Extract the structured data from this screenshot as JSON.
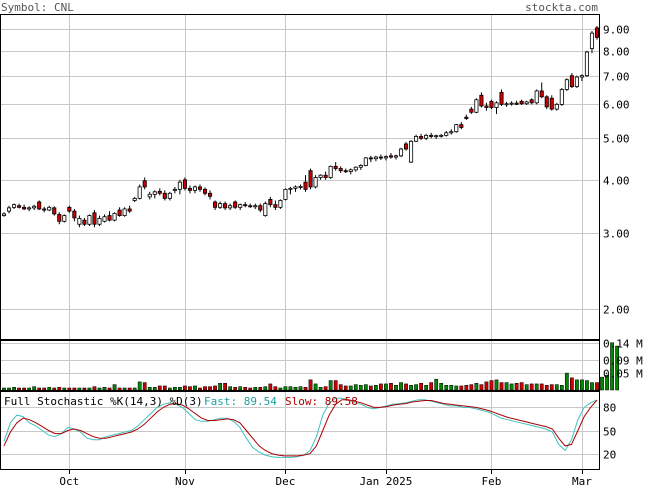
{
  "header": {
    "symbol_text": "Symbol: CNL",
    "brand": "stockta.com"
  },
  "colors": {
    "up_body": "#ffffff",
    "down_body": "#cc0000",
    "volume_up": "#008800",
    "volume_down": "#cc0000",
    "fast_line": "#40c0c0",
    "slow_line": "#aa0000",
    "fast_label": "#20a0a0",
    "slow_label": "#aa0000",
    "brand": "#555555",
    "grid": "#c8c8c8"
  },
  "chart_data": [
    {
      "type": "candlestick",
      "title": "",
      "y_scale": "log",
      "ylim": [
        1.7,
        9.7
      ],
      "y_ticks": [
        {
          "value": 9.0,
          "label": "9.00"
        },
        {
          "value": 8.0,
          "label": "8.00"
        },
        {
          "value": 7.0,
          "label": "7.00"
        },
        {
          "value": 6.0,
          "label": "6.00"
        },
        {
          "value": 5.0,
          "label": "5.00"
        },
        {
          "value": 4.0,
          "label": "4.00"
        },
        {
          "value": 3.0,
          "label": "3.00"
        },
        {
          "value": 2.0,
          "label": "2.00"
        }
      ],
      "x_ticks": [
        {
          "index": 13,
          "label": "Oct"
        },
        {
          "index": 36,
          "label": "Nov"
        },
        {
          "index": 56,
          "label": "Dec"
        },
        {
          "index": 76,
          "label": "Jan 2025"
        },
        {
          "index": 97,
          "label": "Feb"
        },
        {
          "index": 115,
          "label": "Mar"
        }
      ],
      "candles": [
        {
          "o": 3.3,
          "h": 3.36,
          "l": 3.28,
          "c": 3.33
        },
        {
          "o": 3.38,
          "h": 3.48,
          "l": 3.34,
          "c": 3.44
        },
        {
          "o": 3.45,
          "h": 3.52,
          "l": 3.42,
          "c": 3.5
        },
        {
          "o": 3.48,
          "h": 3.52,
          "l": 3.43,
          "c": 3.45
        },
        {
          "o": 3.45,
          "h": 3.5,
          "l": 3.4,
          "c": 3.42
        },
        {
          "o": 3.42,
          "h": 3.47,
          "l": 3.38,
          "c": 3.44
        },
        {
          "o": 3.44,
          "h": 3.5,
          "l": 3.4,
          "c": 3.47
        },
        {
          "o": 3.55,
          "h": 3.58,
          "l": 3.4,
          "c": 3.42
        },
        {
          "o": 3.42,
          "h": 3.46,
          "l": 3.36,
          "c": 3.4
        },
        {
          "o": 3.4,
          "h": 3.48,
          "l": 3.38,
          "c": 3.45
        },
        {
          "o": 3.44,
          "h": 3.47,
          "l": 3.3,
          "c": 3.33
        },
        {
          "o": 3.32,
          "h": 3.36,
          "l": 3.15,
          "c": 3.2
        },
        {
          "o": 3.2,
          "h": 3.32,
          "l": 3.18,
          "c": 3.3
        },
        {
          "o": 3.45,
          "h": 3.48,
          "l": 3.35,
          "c": 3.38
        },
        {
          "o": 3.38,
          "h": 3.42,
          "l": 3.2,
          "c": 3.26
        },
        {
          "o": 3.15,
          "h": 3.3,
          "l": 3.1,
          "c": 3.25
        },
        {
          "o": 3.22,
          "h": 3.26,
          "l": 3.12,
          "c": 3.15
        },
        {
          "o": 3.15,
          "h": 3.32,
          "l": 3.12,
          "c": 3.3
        },
        {
          "o": 3.35,
          "h": 3.4,
          "l": 3.1,
          "c": 3.15
        },
        {
          "o": 3.15,
          "h": 3.3,
          "l": 3.12,
          "c": 3.25
        },
        {
          "o": 3.2,
          "h": 3.32,
          "l": 3.18,
          "c": 3.28
        },
        {
          "o": 3.3,
          "h": 3.38,
          "l": 3.2,
          "c": 3.22
        },
        {
          "o": 3.22,
          "h": 3.36,
          "l": 3.2,
          "c": 3.34
        },
        {
          "o": 3.4,
          "h": 3.45,
          "l": 3.28,
          "c": 3.3
        },
        {
          "o": 3.3,
          "h": 3.45,
          "l": 3.28,
          "c": 3.42
        },
        {
          "o": 3.42,
          "h": 3.48,
          "l": 3.35,
          "c": 3.38
        },
        {
          "o": 3.58,
          "h": 3.65,
          "l": 3.55,
          "c": 3.62
        },
        {
          "o": 3.62,
          "h": 3.9,
          "l": 3.6,
          "c": 3.85
        },
        {
          "o": 3.98,
          "h": 4.05,
          "l": 3.8,
          "c": 3.85
        },
        {
          "o": 3.65,
          "h": 3.75,
          "l": 3.6,
          "c": 3.7
        },
        {
          "o": 3.7,
          "h": 3.78,
          "l": 3.62,
          "c": 3.75
        },
        {
          "o": 3.76,
          "h": 3.82,
          "l": 3.68,
          "c": 3.72
        },
        {
          "o": 3.72,
          "h": 3.78,
          "l": 3.58,
          "c": 3.62
        },
        {
          "o": 3.62,
          "h": 3.75,
          "l": 3.58,
          "c": 3.72
        },
        {
          "o": 3.78,
          "h": 3.85,
          "l": 3.72,
          "c": 3.8
        },
        {
          "o": 3.8,
          "h": 4.0,
          "l": 3.7,
          "c": 3.95
        },
        {
          "o": 4.0,
          "h": 4.05,
          "l": 3.78,
          "c": 3.82
        },
        {
          "o": 3.82,
          "h": 3.88,
          "l": 3.72,
          "c": 3.78
        },
        {
          "o": 3.78,
          "h": 3.88,
          "l": 3.72,
          "c": 3.85
        },
        {
          "o": 3.85,
          "h": 3.9,
          "l": 3.75,
          "c": 3.8
        },
        {
          "o": 3.8,
          "h": 3.84,
          "l": 3.68,
          "c": 3.72
        },
        {
          "o": 3.72,
          "h": 3.78,
          "l": 3.6,
          "c": 3.66
        },
        {
          "o": 3.55,
          "h": 3.58,
          "l": 3.4,
          "c": 3.45
        },
        {
          "o": 3.45,
          "h": 3.56,
          "l": 3.42,
          "c": 3.52
        },
        {
          "o": 3.52,
          "h": 3.56,
          "l": 3.4,
          "c": 3.44
        },
        {
          "o": 3.44,
          "h": 3.52,
          "l": 3.4,
          "c": 3.48
        },
        {
          "o": 3.55,
          "h": 3.58,
          "l": 3.42,
          "c": 3.45
        },
        {
          "o": 3.45,
          "h": 3.52,
          "l": 3.4,
          "c": 3.5
        },
        {
          "o": 3.5,
          "h": 3.55,
          "l": 3.45,
          "c": 3.48
        },
        {
          "o": 3.48,
          "h": 3.52,
          "l": 3.44,
          "c": 3.46
        },
        {
          "o": 3.46,
          "h": 3.52,
          "l": 3.42,
          "c": 3.48
        },
        {
          "o": 3.48,
          "h": 3.52,
          "l": 3.36,
          "c": 3.4
        },
        {
          "o": 3.3,
          "h": 3.56,
          "l": 3.28,
          "c": 3.52
        },
        {
          "o": 3.6,
          "h": 3.65,
          "l": 3.45,
          "c": 3.5
        },
        {
          "o": 3.5,
          "h": 3.58,
          "l": 3.4,
          "c": 3.45
        },
        {
          "o": 3.45,
          "h": 3.6,
          "l": 3.42,
          "c": 3.58
        },
        {
          "o": 3.6,
          "h": 3.82,
          "l": 3.58,
          "c": 3.8
        },
        {
          "o": 3.8,
          "h": 3.85,
          "l": 3.7,
          "c": 3.82
        },
        {
          "o": 3.82,
          "h": 3.88,
          "l": 3.75,
          "c": 3.85
        },
        {
          "o": 3.85,
          "h": 3.9,
          "l": 3.8,
          "c": 3.86
        },
        {
          "o": 3.95,
          "h": 4.1,
          "l": 3.75,
          "c": 3.8
        },
        {
          "o": 4.2,
          "h": 4.25,
          "l": 3.8,
          "c": 3.85
        },
        {
          "o": 3.85,
          "h": 4.1,
          "l": 3.82,
          "c": 4.05
        },
        {
          "o": 4.05,
          "h": 4.12,
          "l": 4.0,
          "c": 4.1
        },
        {
          "o": 4.1,
          "h": 4.18,
          "l": 4.0,
          "c": 4.05
        },
        {
          "o": 4.05,
          "h": 4.32,
          "l": 4.02,
          "c": 4.3
        },
        {
          "o": 4.3,
          "h": 4.4,
          "l": 4.2,
          "c": 4.25
        },
        {
          "o": 4.25,
          "h": 4.3,
          "l": 4.15,
          "c": 4.2
        },
        {
          "o": 4.2,
          "h": 4.25,
          "l": 4.15,
          "c": 4.18
        },
        {
          "o": 4.18,
          "h": 4.25,
          "l": 4.12,
          "c": 4.22
        },
        {
          "o": 4.22,
          "h": 4.3,
          "l": 4.18,
          "c": 4.28
        },
        {
          "o": 4.28,
          "h": 4.35,
          "l": 4.22,
          "c": 4.32
        },
        {
          "o": 4.32,
          "h": 4.52,
          "l": 4.3,
          "c": 4.5
        },
        {
          "o": 4.5,
          "h": 4.55,
          "l": 4.4,
          "c": 4.48
        },
        {
          "o": 4.48,
          "h": 4.55,
          "l": 4.42,
          "c": 4.52
        },
        {
          "o": 4.52,
          "h": 4.58,
          "l": 4.45,
          "c": 4.5
        },
        {
          "o": 4.5,
          "h": 4.56,
          "l": 4.44,
          "c": 4.53
        },
        {
          "o": 4.55,
          "h": 4.62,
          "l": 4.48,
          "c": 4.52
        },
        {
          "o": 4.52,
          "h": 4.58,
          "l": 4.46,
          "c": 4.55
        },
        {
          "o": 4.55,
          "h": 4.75,
          "l": 4.52,
          "c": 4.72
        },
        {
          "o": 4.85,
          "h": 4.9,
          "l": 4.68,
          "c": 4.72
        },
        {
          "o": 4.4,
          "h": 4.95,
          "l": 4.38,
          "c": 4.92
        },
        {
          "o": 4.92,
          "h": 5.1,
          "l": 4.9,
          "c": 5.05
        },
        {
          "o": 5.05,
          "h": 5.12,
          "l": 4.95,
          "c": 5.0
        },
        {
          "o": 5.0,
          "h": 5.12,
          "l": 4.95,
          "c": 5.08
        },
        {
          "o": 5.08,
          "h": 5.15,
          "l": 5.0,
          "c": 5.05
        },
        {
          "o": 5.05,
          "h": 5.1,
          "l": 4.98,
          "c": 5.07
        },
        {
          "o": 5.07,
          "h": 5.12,
          "l": 5.02,
          "c": 5.08
        },
        {
          "o": 5.08,
          "h": 5.2,
          "l": 5.05,
          "c": 5.15
        },
        {
          "o": 5.15,
          "h": 5.25,
          "l": 5.1,
          "c": 5.18
        },
        {
          "o": 5.18,
          "h": 5.4,
          "l": 5.15,
          "c": 5.38
        },
        {
          "o": 5.38,
          "h": 5.45,
          "l": 5.25,
          "c": 5.3
        },
        {
          "o": 5.6,
          "h": 5.68,
          "l": 5.52,
          "c": 5.56
        },
        {
          "o": 5.85,
          "h": 5.92,
          "l": 5.7,
          "c": 5.75
        },
        {
          "o": 5.75,
          "h": 6.2,
          "l": 5.72,
          "c": 6.15
        },
        {
          "o": 6.3,
          "h": 6.4,
          "l": 5.9,
          "c": 5.95
        },
        {
          "o": 5.95,
          "h": 6.05,
          "l": 5.8,
          "c": 5.9
        },
        {
          "o": 6.1,
          "h": 6.15,
          "l": 5.85,
          "c": 5.9
        },
        {
          "o": 5.9,
          "h": 6.1,
          "l": 5.7,
          "c": 6.05
        },
        {
          "o": 6.4,
          "h": 6.5,
          "l": 5.95,
          "c": 6.0
        },
        {
          "o": 6.0,
          "h": 6.08,
          "l": 5.92,
          "c": 6.02
        },
        {
          "o": 6.02,
          "h": 6.1,
          "l": 5.96,
          "c": 6.04
        },
        {
          "o": 6.04,
          "h": 6.12,
          "l": 5.98,
          "c": 6.0
        },
        {
          "o": 6.1,
          "h": 6.15,
          "l": 5.98,
          "c": 6.02
        },
        {
          "o": 6.02,
          "h": 6.12,
          "l": 5.98,
          "c": 6.08
        },
        {
          "o": 6.15,
          "h": 6.2,
          "l": 6.0,
          "c": 6.05
        },
        {
          "o": 6.05,
          "h": 6.5,
          "l": 6.0,
          "c": 6.45
        },
        {
          "o": 6.45,
          "h": 6.75,
          "l": 6.2,
          "c": 6.25
        },
        {
          "o": 6.25,
          "h": 6.3,
          "l": 5.85,
          "c": 5.92
        },
        {
          "o": 6.2,
          "h": 6.3,
          "l": 5.8,
          "c": 5.85
        },
        {
          "o": 5.85,
          "h": 6.05,
          "l": 5.8,
          "c": 6.0
        },
        {
          "o": 6.0,
          "h": 6.55,
          "l": 5.95,
          "c": 6.5
        },
        {
          "o": 6.5,
          "h": 6.9,
          "l": 6.45,
          "c": 6.85
        },
        {
          "o": 7.0,
          "h": 7.1,
          "l": 6.55,
          "c": 6.6
        },
        {
          "o": 6.6,
          "h": 7.0,
          "l": 6.55,
          "c": 6.95
        },
        {
          "o": 6.95,
          "h": 7.05,
          "l": 6.8,
          "c": 7.0
        },
        {
          "o": 7.0,
          "h": 8.0,
          "l": 6.95,
          "c": 7.95
        },
        {
          "o": 8.1,
          "h": 8.9,
          "l": 7.9,
          "c": 8.8
        },
        {
          "o": 9.05,
          "h": 9.15,
          "l": 8.5,
          "c": 8.6
        }
      ]
    },
    {
      "type": "bar",
      "title": "",
      "ylim": [
        0,
        0.145
      ],
      "y_ticks": [
        {
          "value": 0.14,
          "label": "0.14 M"
        },
        {
          "value": 0.09,
          "label": "0.09 M"
        },
        {
          "value": 0.05,
          "label": "0.05 M"
        }
      ],
      "unit": "M",
      "values": [
        0.006,
        0.006,
        0.008,
        0.006,
        0.006,
        0.006,
        0.01,
        0.006,
        0.006,
        0.008,
        0.006,
        0.008,
        0.006,
        0.006,
        0.006,
        0.006,
        0.006,
        0.006,
        0.01,
        0.006,
        0.008,
        0.006,
        0.016,
        0.006,
        0.006,
        0.006,
        0.006,
        0.024,
        0.022,
        0.008,
        0.008,
        0.012,
        0.012,
        0.006,
        0.008,
        0.008,
        0.012,
        0.01,
        0.012,
        0.006,
        0.01,
        0.01,
        0.012,
        0.02,
        0.02,
        0.01,
        0.008,
        0.01,
        0.008,
        0.006,
        0.008,
        0.008,
        0.01,
        0.018,
        0.01,
        0.006,
        0.01,
        0.01,
        0.008,
        0.01,
        0.008,
        0.03,
        0.018,
        0.008,
        0.01,
        0.028,
        0.028,
        0.016,
        0.012,
        0.012,
        0.016,
        0.014,
        0.016,
        0.012,
        0.014,
        0.018,
        0.018,
        0.02,
        0.014,
        0.022,
        0.018,
        0.014,
        0.016,
        0.02,
        0.014,
        0.022,
        0.032,
        0.02,
        0.014,
        0.014,
        0.012,
        0.012,
        0.014,
        0.016,
        0.02,
        0.016,
        0.024,
        0.028,
        0.03,
        0.022,
        0.022,
        0.018,
        0.02,
        0.022,
        0.016,
        0.018,
        0.018,
        0.018,
        0.014,
        0.016,
        0.016,
        0.014,
        0.05,
        0.036,
        0.03,
        0.03,
        0.028,
        0.022,
        0.022,
        0.038,
        0.044,
        0.14,
        0.13
      ]
    },
    {
      "type": "line",
      "title": "Full Stochastic %K(14,3) %D(3)",
      "ylim": [
        0,
        100
      ],
      "y_ticks": [
        {
          "value": 80,
          "label": "80"
        },
        {
          "value": 50,
          "label": "50"
        },
        {
          "value": 20,
          "label": "20"
        }
      ],
      "series": [
        {
          "name": "Fast",
          "last_value_label": "89.54",
          "values": [
            36,
            60,
            70,
            68,
            60,
            56,
            50,
            44,
            42,
            46,
            54,
            52,
            48,
            40,
            38,
            38,
            42,
            44,
            46,
            48,
            50,
            56,
            64,
            72,
            80,
            84,
            86,
            84,
            80,
            72,
            64,
            62,
            62,
            64,
            66,
            66,
            62,
            54,
            40,
            28,
            22,
            18,
            16,
            15,
            15,
            15,
            16,
            18,
            24,
            42,
            70,
            86,
            92,
            92,
            90,
            86,
            84,
            80,
            78,
            80,
            82,
            84,
            85,
            86,
            88,
            90,
            90,
            88,
            86,
            84,
            82,
            82,
            80,
            80,
            78,
            76,
            74,
            70,
            66,
            64,
            62,
            60,
            58,
            56,
            54,
            52,
            48,
            32,
            24,
            38,
            64,
            80,
            86,
            89.54
          ]
        },
        {
          "name": "Slow",
          "last_value_label": "89.58",
          "values": [
            30,
            48,
            60,
            66,
            64,
            60,
            55,
            50,
            46,
            46,
            50,
            52,
            50,
            46,
            42,
            40,
            40,
            42,
            44,
            46,
            48,
            52,
            58,
            66,
            74,
            80,
            84,
            85,
            83,
            78,
            72,
            66,
            63,
            63,
            64,
            65,
            64,
            60,
            50,
            40,
            30,
            24,
            20,
            18,
            17,
            17,
            17,
            18,
            20,
            30,
            50,
            70,
            84,
            90,
            90,
            88,
            86,
            83,
            80,
            80,
            81,
            83,
            84,
            85,
            87,
            88,
            89,
            89,
            87,
            85,
            84,
            83,
            82,
            81,
            80,
            78,
            76,
            73,
            70,
            67,
            65,
            63,
            61,
            59,
            57,
            55,
            52,
            40,
            30,
            32,
            50,
            68,
            80,
            89.58
          ]
        }
      ]
    }
  ]
}
